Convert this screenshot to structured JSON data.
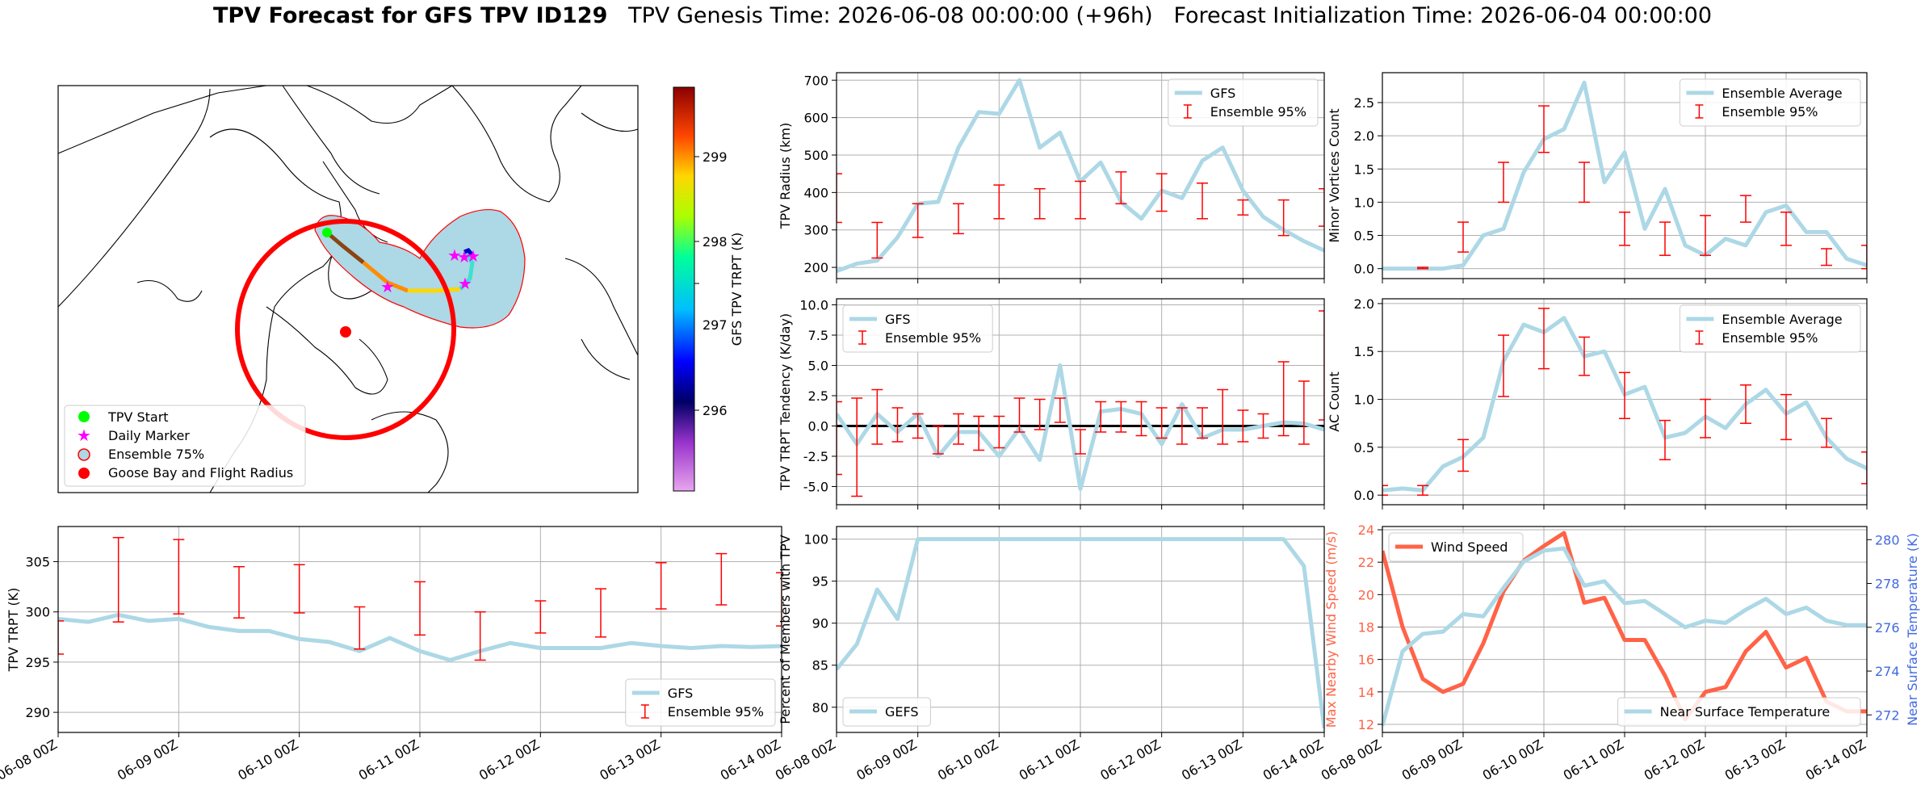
{
  "header": {
    "title_bold": "TPV Forecast for GFS TPV ID129",
    "genesis": "TPV Genesis Time: 2026-06-08 00:00:00 (+96h)",
    "init": "Forecast Initialization Time: 2026-06-04 00:00:00"
  },
  "colors": {
    "gfs": "#add8e6",
    "ensemble": "#ff0000",
    "wind": "#ff6347",
    "temp_axis": "#4169e1",
    "grid": "#b0b0b0"
  },
  "map": {
    "legend": [
      "TPV Start",
      "Daily Marker",
      "Ensemble 75%",
      "Goose Bay and Flight Radius"
    ],
    "colorbar_label": "GFS TPV TRPT (K)",
    "colorbar_ticks": [
      "296",
      "297",
      "298",
      "299"
    ]
  },
  "x_ticks": [
    "06-08 00Z",
    "06-09 00Z",
    "06-10 00Z",
    "06-11 00Z",
    "06-12 00Z",
    "06-13 00Z",
    "06-14 00Z"
  ],
  "chart_data": [
    {
      "id": "radius",
      "type": "line",
      "ylabel": "TPV Radius (km)",
      "ylim": [
        170,
        720
      ],
      "yticks": [
        200,
        300,
        400,
        500,
        600,
        700
      ],
      "legend": [
        "GFS",
        "Ensemble 95%"
      ],
      "legend_pos": "top-right",
      "series": [
        {
          "name": "GFS",
          "x_hours": [
            0,
            6,
            12,
            18,
            24,
            30,
            36,
            42,
            48,
            54,
            60,
            66,
            72,
            78,
            84,
            90,
            96,
            102,
            108,
            114,
            120,
            126,
            132,
            138,
            144
          ],
          "values": [
            190,
            210,
            218,
            280,
            370,
            375,
            520,
            615,
            610,
            700,
            520,
            560,
            430,
            480,
            375,
            330,
            405,
            385,
            485,
            520,
            405,
            335,
            300,
            270,
            245
          ]
        }
      ],
      "errorbars": {
        "x_hours": [
          0,
          12,
          24,
          36,
          48,
          60,
          72,
          84,
          96,
          108,
          120,
          132,
          144
        ],
        "center": [
          385,
          270,
          330,
          330,
          375,
          370,
          380,
          410,
          405,
          380,
          360,
          330,
          360
        ],
        "low": [
          320,
          225,
          280,
          290,
          330,
          330,
          330,
          370,
          350,
          330,
          340,
          285,
          310
        ],
        "high": [
          450,
          320,
          370,
          370,
          420,
          410,
          430,
          455,
          450,
          425,
          380,
          380,
          410
        ]
      }
    },
    {
      "id": "minor",
      "type": "line",
      "ylabel": "Minor Vortices Count",
      "ylim": [
        -0.15,
        2.95
      ],
      "yticks": [
        0.0,
        0.5,
        1.0,
        1.5,
        2.0,
        2.5
      ],
      "legend": [
        "Ensemble Average",
        "Ensemble 95%"
      ],
      "legend_pos": "top-right",
      "series": [
        {
          "name": "Ensemble Average",
          "x_hours": [
            0,
            6,
            12,
            18,
            24,
            30,
            36,
            42,
            48,
            54,
            60,
            66,
            72,
            78,
            84,
            90,
            96,
            102,
            108,
            114,
            120,
            126,
            132,
            138,
            144
          ],
          "values": [
            0,
            0,
            0,
            0,
            0.05,
            0.5,
            0.6,
            1.45,
            1.95,
            2.1,
            2.8,
            1.3,
            1.75,
            0.6,
            1.2,
            0.35,
            0.2,
            0.45,
            0.35,
            0.85,
            0.95,
            0.55,
            0.55,
            0.15,
            0.05
          ]
        }
      ],
      "errorbars": {
        "x_hours": [
          12,
          24,
          36,
          48,
          60,
          72,
          84,
          96,
          108,
          120,
          132,
          144
        ],
        "center": [
          0,
          0.45,
          1.3,
          2.1,
          1.3,
          0.6,
          0.45,
          0.5,
          0.9,
          0.6,
          0.2,
          0.2
        ],
        "low": [
          0,
          0.25,
          1.0,
          1.75,
          1.0,
          0.35,
          0.2,
          0.2,
          0.7,
          0.35,
          0.05,
          0.0
        ],
        "high": [
          0.02,
          0.7,
          1.6,
          2.45,
          1.6,
          0.85,
          0.7,
          0.8,
          1.1,
          0.85,
          0.3,
          0.35
        ]
      }
    },
    {
      "id": "tendency",
      "type": "line",
      "ylabel": "TPV TRPT Tendency (K/day)",
      "ylim": [
        -6.5,
        10.5
      ],
      "yticks": [
        -5.0,
        -2.5,
        0.0,
        2.5,
        5.0,
        7.5,
        10.0
      ],
      "legend": [
        "GFS",
        "Ensemble 95%"
      ],
      "legend_pos": "top-left",
      "series": [
        {
          "name": "GFS",
          "x_hours": [
            0,
            6,
            12,
            18,
            24,
            30,
            36,
            42,
            48,
            54,
            60,
            66,
            72,
            78,
            84,
            90,
            96,
            102,
            108,
            114,
            120,
            126,
            132,
            138,
            144
          ],
          "values": [
            1.0,
            -1.5,
            1.0,
            -0.5,
            1.0,
            -2.5,
            -0.5,
            -0.5,
            -2.5,
            -0.2,
            -2.8,
            5.0,
            -5.2,
            1.2,
            1.4,
            1.0,
            -1.5,
            1.8,
            -1.0,
            -0.3,
            -0.3,
            0.0,
            0.3,
            0.2,
            -0.3
          ]
        }
      ],
      "errorbars": {
        "x_hours": [
          0,
          6,
          12,
          18,
          24,
          30,
          36,
          42,
          48,
          54,
          60,
          66,
          72,
          78,
          84,
          90,
          96,
          102,
          108,
          114,
          120,
          126,
          132,
          138,
          144
        ],
        "center": [
          -1.0,
          -1.5,
          0.8,
          0.0,
          -0.2,
          -0.8,
          0.0,
          -0.3,
          -0.5,
          0.8,
          1.0,
          1.5,
          -0.8,
          0.5,
          0.8,
          0.5,
          0.5,
          0.0,
          0.5,
          0.0,
          0.5,
          0.0,
          1.8,
          0.8,
          1.5
        ],
        "low": [
          -4.0,
          -5.8,
          -1.5,
          -1.3,
          -1.0,
          -2.3,
          -1.5,
          -2.0,
          -1.8,
          -0.5,
          -0.3,
          0.3,
          -2.3,
          -0.5,
          -0.5,
          -0.8,
          -1.0,
          -1.5,
          -1.0,
          -1.5,
          -1.3,
          -1.0,
          -0.8,
          -1.5,
          0.5
        ],
        "high": [
          2.0,
          2.3,
          3.0,
          1.5,
          1.0,
          0.0,
          1.0,
          0.8,
          0.8,
          2.3,
          2.2,
          2.3,
          -0.3,
          2.0,
          2.0,
          2.0,
          1.5,
          1.5,
          1.5,
          3.0,
          1.3,
          1.0,
          5.3,
          3.7,
          9.5
        ]
      },
      "zero_line": true
    },
    {
      "id": "ac",
      "type": "line",
      "ylabel": "AC Count",
      "ylim": [
        -0.1,
        2.05
      ],
      "yticks": [
        0.0,
        0.5,
        1.0,
        1.5,
        2.0
      ],
      "legend": [
        "Ensemble Average",
        "Ensemble 95%"
      ],
      "legend_pos": "top-right",
      "series": [
        {
          "name": "Ensemble Average",
          "x_hours": [
            0,
            6,
            12,
            18,
            24,
            30,
            36,
            42,
            48,
            54,
            60,
            66,
            72,
            78,
            84,
            90,
            96,
            102,
            108,
            114,
            120,
            126,
            132,
            138,
            144
          ],
          "values": [
            0.05,
            0.07,
            0.05,
            0.3,
            0.4,
            0.6,
            1.4,
            1.78,
            1.7,
            1.85,
            1.45,
            1.5,
            1.05,
            1.13,
            0.6,
            0.65,
            0.82,
            0.7,
            0.95,
            1.1,
            0.85,
            0.97,
            0.6,
            0.38,
            0.28
          ]
        }
      ],
      "errorbars": {
        "x_hours": [
          0,
          12,
          24,
          36,
          48,
          60,
          72,
          84,
          96,
          108,
          120,
          132,
          144
        ],
        "center": [
          0.05,
          0.05,
          0.4,
          1.35,
          1.65,
          1.45,
          1.05,
          0.55,
          0.8,
          0.95,
          0.8,
          0.65,
          0.28
        ],
        "low": [
          0.0,
          0.0,
          0.25,
          1.03,
          1.32,
          1.25,
          0.8,
          0.37,
          0.6,
          0.75,
          0.58,
          0.5,
          0.12
        ],
        "high": [
          0.1,
          0.1,
          0.58,
          1.67,
          1.95,
          1.65,
          1.28,
          0.78,
          1.0,
          1.15,
          1.05,
          0.8,
          0.45
        ]
      }
    },
    {
      "id": "trpt",
      "type": "line",
      "ylabel": "TPV TRPT (K)",
      "ylim": [
        288,
        308.5
      ],
      "yticks": [
        290,
        295,
        300,
        305
      ],
      "legend": [
        "GFS",
        "Ensemble 95%"
      ],
      "legend_pos": "bottom-right",
      "series": [
        {
          "name": "GFS",
          "x_hours": [
            0,
            6,
            12,
            18,
            24,
            30,
            36,
            42,
            48,
            54,
            60,
            66,
            72,
            78,
            84,
            90,
            96,
            102,
            108,
            114,
            120,
            126,
            132,
            138,
            144
          ],
          "values": [
            299.3,
            299.0,
            299.7,
            299.1,
            299.3,
            298.5,
            298.1,
            298.1,
            297.3,
            297.0,
            296.1,
            297.4,
            296.1,
            295.2,
            296.1,
            296.9,
            296.4,
            296.4,
            296.4,
            296.9,
            296.6,
            296.4,
            296.6,
            296.5,
            296.6
          ]
        }
      ],
      "errorbars": {
        "x_hours": [
          0,
          12,
          24,
          36,
          48,
          60,
          72,
          84,
          96,
          108,
          120,
          132,
          144
        ],
        "center": [
          297.5,
          303.0,
          303.5,
          302.0,
          302.5,
          298.5,
          300.5,
          297.5,
          299.5,
          299.5,
          302.5,
          303.0,
          301.0
        ],
        "low": [
          295.8,
          299.0,
          299.8,
          299.4,
          299.9,
          296.3,
          297.7,
          295.2,
          297.9,
          297.5,
          300.3,
          300.7,
          298.6
        ],
        "high": [
          299.1,
          307.4,
          307.2,
          304.5,
          304.7,
          300.5,
          303.0,
          300.0,
          301.1,
          302.3,
          304.9,
          305.8,
          303.9
        ]
      }
    },
    {
      "id": "members",
      "type": "line",
      "ylabel": "Percent of Members with TPV",
      "ylim": [
        77,
        101.5
      ],
      "yticks": [
        80,
        85,
        90,
        95,
        100
      ],
      "legend": [
        "GEFS"
      ],
      "legend_pos": "bottom-left",
      "series": [
        {
          "name": "GEFS",
          "x_hours": [
            0,
            6,
            12,
            18,
            24,
            30,
            36,
            42,
            48,
            54,
            60,
            66,
            72,
            78,
            84,
            90,
            96,
            102,
            108,
            114,
            120,
            126,
            132,
            138,
            144
          ],
          "values": [
            84.5,
            87.5,
            94.0,
            90.5,
            100,
            100,
            100,
            100,
            100,
            100,
            100,
            100,
            100,
            100,
            100,
            100,
            100,
            100,
            100,
            100,
            100,
            100,
            100,
            96.8,
            77.5
          ]
        }
      ]
    },
    {
      "id": "wind_temp",
      "type": "line",
      "ylabel": "Max Nearby Wind Speed (m/s)",
      "ylim": [
        11.5,
        24.2
      ],
      "yticks": [
        12,
        14,
        16,
        18,
        20,
        22,
        24
      ],
      "y2label": "Near Surface Temperature (K)",
      "y2lim": [
        271.2,
        280.6
      ],
      "y2ticks": [
        272,
        274,
        276,
        278,
        280
      ],
      "legend": [
        "Wind Speed"
      ],
      "legend_pos": "top-left",
      "legend2": [
        "Near Surface Temperature"
      ],
      "legend2_pos": "bottom-right",
      "series": [
        {
          "name": "Wind Speed",
          "axis": "left",
          "x_hours": [
            0,
            6,
            12,
            18,
            24,
            30,
            36,
            42,
            48,
            54,
            60,
            66,
            72,
            78,
            84,
            90,
            96,
            102,
            108,
            114,
            120,
            126,
            132,
            138,
            144
          ],
          "values": [
            22.7,
            18.0,
            14.8,
            14.0,
            14.5,
            17.0,
            20.2,
            22.1,
            23.0,
            23.8,
            19.5,
            19.8,
            17.2,
            17.2,
            15.0,
            12.3,
            14.0,
            14.3,
            16.5,
            17.7,
            15.5,
            16.1,
            13.4,
            12.8,
            12.8
          ]
        },
        {
          "name": "Near Surface Temperature",
          "axis": "right",
          "x_hours": [
            0,
            6,
            12,
            18,
            24,
            30,
            36,
            42,
            48,
            54,
            60,
            66,
            72,
            78,
            84,
            90,
            96,
            102,
            108,
            114,
            120,
            126,
            132,
            138,
            144
          ],
          "values": [
            271.5,
            274.9,
            275.7,
            275.8,
            276.6,
            276.5,
            277.8,
            279.0,
            279.5,
            279.6,
            277.9,
            278.1,
            277.1,
            277.2,
            276.6,
            276.0,
            276.3,
            276.2,
            276.8,
            277.3,
            276.6,
            276.9,
            276.3,
            276.1,
            276.1
          ]
        }
      ]
    }
  ]
}
